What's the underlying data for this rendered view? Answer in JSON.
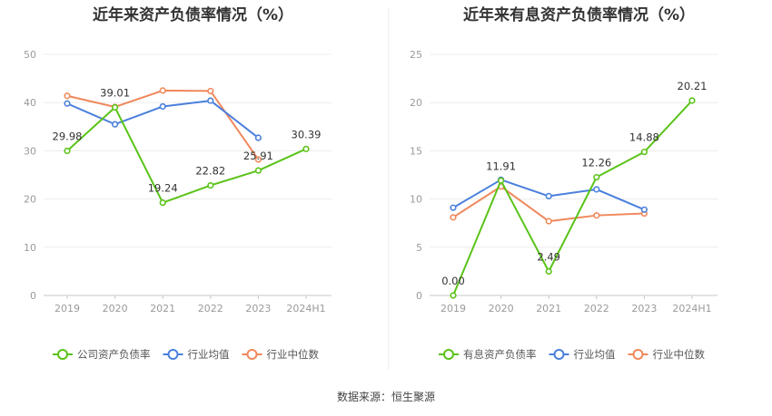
{
  "footer": {
    "source": "数据来源：恒生聚源"
  },
  "chart_data": [
    {
      "type": "line",
      "title": "近年来资产负债率情况（%）",
      "categories": [
        "2019",
        "2020",
        "2021",
        "2022",
        "2023",
        "2024H1"
      ],
      "ylim": [
        0,
        50
      ],
      "yticks": [
        0,
        10,
        20,
        30,
        40,
        50
      ],
      "grid": true,
      "legend_position": "bottom",
      "series": [
        {
          "name": "公司资产负债率",
          "color": "#5ac318",
          "values": [
            29.98,
            39.01,
            19.24,
            22.82,
            25.91,
            30.39
          ],
          "labels": [
            "29.98",
            "39.01",
            "19.24",
            "22.82",
            "25.91",
            "30.39"
          ]
        },
        {
          "name": "行业均值",
          "color": "#4a7fdc",
          "values": [
            39.8,
            35.5,
            39.2,
            40.4,
            32.7,
            null
          ]
        },
        {
          "name": "行业中位数",
          "color": "#f0885c",
          "values": [
            41.4,
            39.1,
            42.5,
            42.4,
            28.2,
            null
          ]
        }
      ]
    },
    {
      "type": "line",
      "title": "近年来有息资产负债率情况（%）",
      "categories": [
        "2019",
        "2020",
        "2021",
        "2022",
        "2023",
        "2024H1"
      ],
      "ylim": [
        0,
        25
      ],
      "yticks": [
        0,
        5,
        10,
        15,
        20,
        25
      ],
      "grid": true,
      "legend_position": "bottom",
      "series": [
        {
          "name": "有息资产负债率",
          "color": "#5ac318",
          "values": [
            0.0,
            11.91,
            2.49,
            12.26,
            14.88,
            20.21
          ],
          "labels": [
            "0.00",
            "11.91",
            "2.49",
            "12.26",
            "14.88",
            "20.21"
          ]
        },
        {
          "name": "行业均值",
          "color": "#4a7fdc",
          "values": [
            9.1,
            12.0,
            10.3,
            11.0,
            8.9,
            null
          ]
        },
        {
          "name": "行业中位数",
          "color": "#f0885c",
          "values": [
            8.1,
            11.3,
            7.7,
            8.3,
            8.5,
            null
          ]
        }
      ]
    }
  ]
}
